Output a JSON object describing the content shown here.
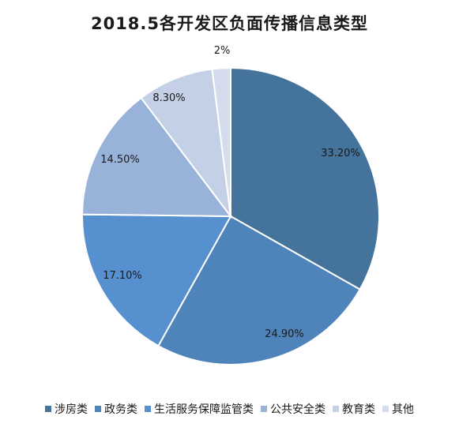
{
  "chart_data": {
    "type": "pie",
    "title": "2018.5各开发区负面传播信息类型",
    "categories": [
      "涉房类",
      "政务类",
      "生活服务保障监管类",
      "公共安全类",
      "教育类",
      "其他"
    ],
    "values": [
      33.2,
      24.9,
      17.1,
      14.5,
      8.3,
      2
    ],
    "data_labels": [
      "33.20%",
      "24.90%",
      "17.10%",
      "14.50%",
      "8.30%",
      "2%"
    ],
    "colors": [
      "#44739c",
      "#4e84b9",
      "#5690cf",
      "#98b2da",
      "#c3d0e6",
      "#d4dced"
    ],
    "legend_position": "bottom"
  }
}
